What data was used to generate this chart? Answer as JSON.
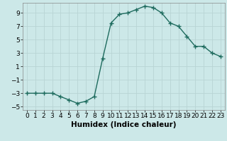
{
  "x": [
    0,
    1,
    2,
    3,
    4,
    5,
    6,
    7,
    8,
    9,
    10,
    11,
    12,
    13,
    14,
    15,
    16,
    17,
    18,
    19,
    20,
    21,
    22,
    23
  ],
  "y": [
    -3.0,
    -3.0,
    -3.0,
    -3.0,
    -3.5,
    -4.0,
    -4.5,
    -4.2,
    -3.5,
    2.2,
    7.5,
    8.8,
    9.0,
    9.5,
    10.0,
    9.8,
    9.0,
    7.5,
    7.0,
    5.5,
    4.0,
    4.0,
    3.0,
    2.5
  ],
  "line_color": "#1e6b5e",
  "bg_color": "#cce8e8",
  "grid_color": "#b8d4d4",
  "xlabel": "Humidex (Indice chaleur)",
  "xlim": [
    -0.5,
    23.5
  ],
  "ylim": [
    -5.5,
    10.5
  ],
  "yticks": [
    -5,
    -3,
    -1,
    1,
    3,
    5,
    7,
    9
  ],
  "xticks": [
    0,
    1,
    2,
    3,
    4,
    5,
    6,
    7,
    8,
    9,
    10,
    11,
    12,
    13,
    14,
    15,
    16,
    17,
    18,
    19,
    20,
    21,
    22,
    23
  ],
  "marker": "+",
  "marker_size": 4,
  "line_width": 1.0,
  "font_size": 6.5,
  "xlabel_fontsize": 7.5
}
